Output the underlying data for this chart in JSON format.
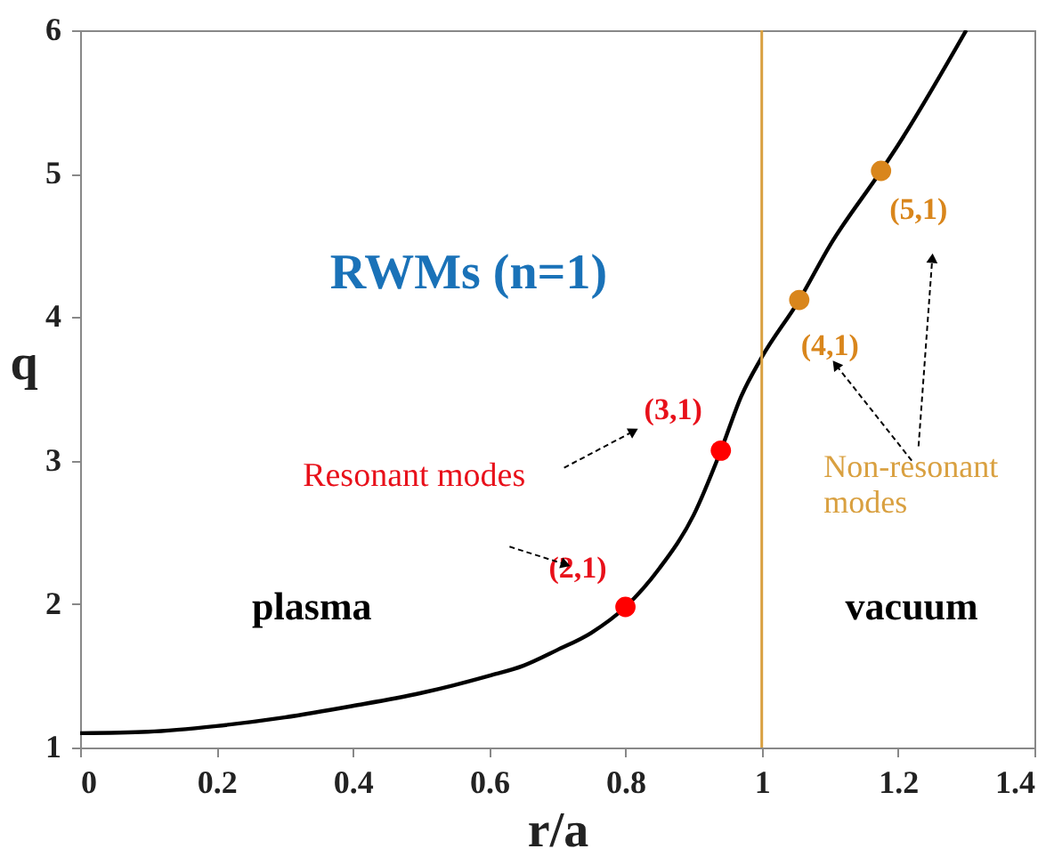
{
  "chart_data": {
    "type": "line",
    "xlabel": "r/a",
    "ylabel": "q",
    "xlim": [
      0,
      1.4
    ],
    "ylim": [
      1,
      6
    ],
    "xticks": [
      0,
      0.2,
      0.4,
      0.6,
      0.8,
      1,
      1.2,
      1.4
    ],
    "yticks": [
      1,
      2,
      3,
      4,
      5,
      6
    ],
    "grid": false,
    "series": [
      {
        "color": "#000000",
        "marker": "none",
        "x": [
          0,
          0.1,
          0.2,
          0.3,
          0.4,
          0.5,
          0.6,
          0.65,
          0.7,
          0.75,
          0.8,
          0.85,
          0.9,
          0.94,
          0.97,
          1.0,
          1.055,
          1.1,
          1.175,
          1.2,
          1.3
        ],
        "values": [
          1.1,
          1.11,
          1.15,
          1.21,
          1.29,
          1.38,
          1.5,
          1.57,
          1.68,
          1.8,
          1.98,
          2.25,
          2.62,
          3.07,
          3.45,
          3.72,
          4.12,
          4.5,
          5.02,
          5.2,
          6.0
        ]
      },
      {
        "type": "scatter",
        "color": "#ff0000",
        "marker": "circle",
        "x": [
          0.8,
          0.94
        ],
        "values": [
          1.98,
          3.07
        ]
      },
      {
        "type": "scatter",
        "color": "#d9861c",
        "marker": "circle",
        "x": [
          1.055,
          1.175
        ],
        "values": [
          4.12,
          5.02
        ]
      }
    ],
    "ref_lines": [
      {
        "axis": "x",
        "value": 1,
        "color": "#d9a040"
      }
    ],
    "annotations": [
      "RWMs (n=1)",
      "plasma",
      "vacuum",
      "Resonant modes",
      "(2,1)",
      "(3,1)",
      "Non-resonant\nmodes",
      "(4,1)",
      "(5,1)"
    ]
  }
}
